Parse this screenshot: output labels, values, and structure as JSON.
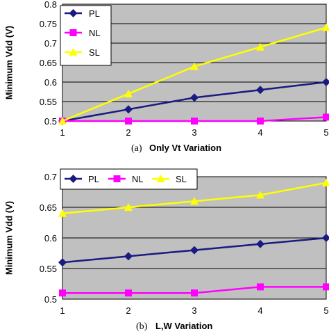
{
  "chart_data": [
    {
      "type": "line",
      "caption_prefix": "(a)",
      "caption": "Only Vt Variation",
      "ylabel": "Minimum Vdd (V)",
      "x": [
        1,
        2,
        3,
        4,
        5
      ],
      "x_tick_labels": [
        "1",
        "2",
        "3",
        "4",
        "5"
      ],
      "ylim": [
        0.5,
        0.8
      ],
      "y_ticks": [
        "0.5",
        "0.55",
        "0.6",
        "0.65",
        "0.7",
        "0.75",
        "0.8"
      ],
      "grid": true,
      "legend_position": "top-left, vertical",
      "series": [
        {
          "name": "PL",
          "values": [
            0.5,
            0.53,
            0.56,
            0.58,
            0.6
          ],
          "color": "#1a1a80",
          "marker": "diamond"
        },
        {
          "name": "NL",
          "values": [
            0.5,
            0.5,
            0.5,
            0.5,
            0.51
          ],
          "color": "#ff00ff",
          "marker": "square"
        },
        {
          "name": "SL",
          "values": [
            0.5,
            0.57,
            0.64,
            0.69,
            0.74
          ],
          "color": "#ffff00",
          "marker": "triangle"
        }
      ]
    },
    {
      "type": "line",
      "caption_prefix": "(b)",
      "caption": "L,W Variation",
      "ylabel": "Minimum Vdd (V)",
      "x": [
        1,
        2,
        3,
        4,
        5
      ],
      "x_tick_labels": [
        "1",
        "2",
        "3",
        "4",
        "5"
      ],
      "ylim": [
        0.5,
        0.7
      ],
      "y_ticks": [
        "0.5",
        "0.55",
        "0.6",
        "0.65",
        "0.7"
      ],
      "grid": true,
      "legend_position": "top, horizontal",
      "series": [
        {
          "name": "PL",
          "values": [
            0.56,
            0.57,
            0.58,
            0.59,
            0.6
          ],
          "color": "#1a1a80",
          "marker": "diamond"
        },
        {
          "name": "NL",
          "values": [
            0.51,
            0.51,
            0.51,
            0.52,
            0.52
          ],
          "color": "#ff00ff",
          "marker": "square"
        },
        {
          "name": "SL",
          "values": [
            0.64,
            0.65,
            0.66,
            0.67,
            0.69
          ],
          "color": "#ffff00",
          "marker": "triangle"
        }
      ]
    }
  ]
}
